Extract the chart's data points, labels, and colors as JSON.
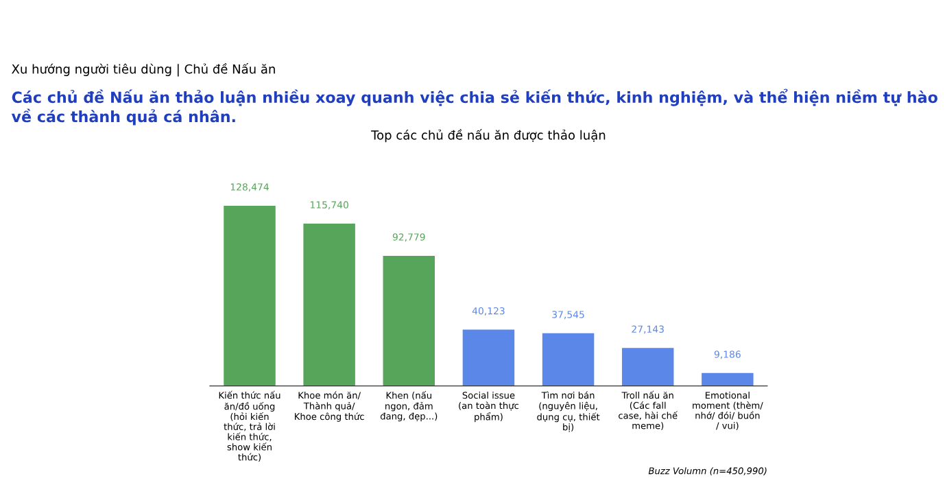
{
  "chart_data": {
    "type": "bar",
    "title": "Top các chủ đề nấu ăn được thảo luận",
    "categories": [
      "Kiến thức nấu ăn/đồ uống (hỏi kiến thức, trả lời kiến thức, show kiến thức)",
      "Khoe món ăn/ Thành quả/ Khoe công thức",
      "Khen (nấu ngon, đảm đang, đẹp...)",
      "Social issue (an toàn thực phẩm)",
      "Tìm nơi bán (nguyên liệu, dụng cụ, thiết bị)",
      "Troll nấu ăn (Các fall case, hài chế meme)",
      "Emotional moment (thèm/ nhớ/ đói/ buồn / vui)"
    ],
    "values": [
      128474,
      115740,
      92779,
      40123,
      37545,
      27143,
      9186
    ],
    "colors": [
      "#57a55a",
      "#57a55a",
      "#57a55a",
      "#5b87e8",
      "#5b87e8",
      "#5b87e8",
      "#5b87e8"
    ],
    "value_labels": [
      "128,474",
      "115,740",
      "92,779",
      "40,123",
      "37,545",
      "27,143",
      "9,186"
    ],
    "tick_labels": "x",
    "grid": false,
    "legend": false,
    "annotations": [
      "Xu hướng người tiêu dùng | Chủ đề Nấu ăn",
      "Các chủ đề Nấu ăn thảo luận nhiều xoay quanh việc chia sẻ kiến thức, kinh nghiệm, và thể hiện niềm tự hào về các thành quả cá nhân.",
      "Buzz Volumn (n=450,990)"
    ]
  }
}
